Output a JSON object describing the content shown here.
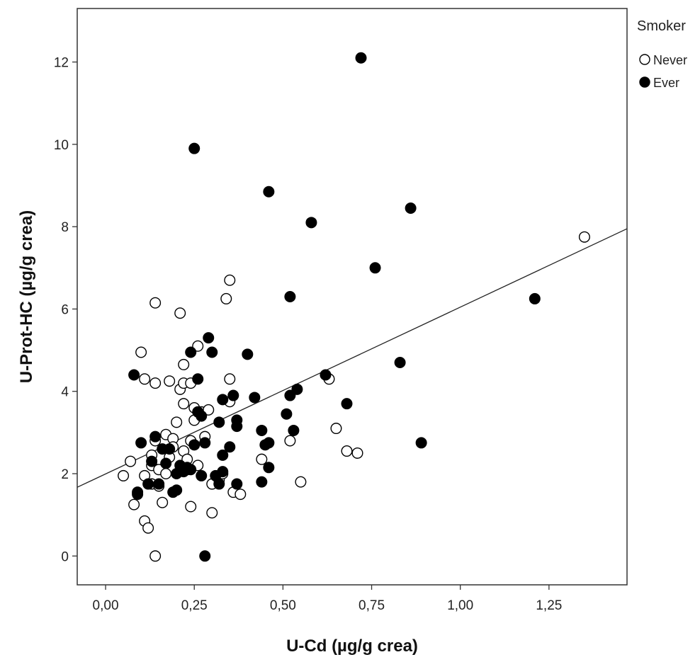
{
  "chart_data": {
    "type": "scatter",
    "title": "",
    "xlabel": "U-Cd (µg/g crea)",
    "ylabel": "U-Prot-HC (µg/g crea)",
    "xlim": [
      -0.08,
      1.47
    ],
    "ylim": [
      -0.7,
      13.3
    ],
    "x_ticks": [
      0,
      0.25,
      0.5,
      0.75,
      1,
      1.25
    ],
    "x_tick_labels": [
      "0,00",
      "0,25",
      "0,50",
      "0,75",
      "1,00",
      "1,25"
    ],
    "y_ticks": [
      0,
      2,
      4,
      6,
      8,
      10,
      12
    ],
    "y_tick_labels": [
      "0",
      "2",
      "4",
      "6",
      "8",
      "10",
      "12"
    ],
    "grid": false,
    "legend": {
      "title": "Smoker",
      "placement": "right-top-outside"
    },
    "fit_line": {
      "x": [
        -0.08,
        1.47
      ],
      "y": [
        1.67,
        7.95
      ]
    },
    "series": [
      {
        "name": "Never",
        "marker": "open-circle",
        "color": "#000000",
        "points": [
          [
            0.05,
            1.95
          ],
          [
            0.07,
            2.3
          ],
          [
            0.08,
            1.25
          ],
          [
            0.1,
            4.95
          ],
          [
            0.11,
            4.3
          ],
          [
            0.11,
            1.95
          ],
          [
            0.11,
            0.85
          ],
          [
            0.12,
            0.68
          ],
          [
            0.13,
            2.45
          ],
          [
            0.13,
            2.2
          ],
          [
            0.13,
            1.75
          ],
          [
            0.14,
            2.8
          ],
          [
            0.14,
            0.0
          ],
          [
            0.14,
            6.15
          ],
          [
            0.14,
            4.2
          ],
          [
            0.15,
            2.1
          ],
          [
            0.15,
            1.7
          ],
          [
            0.16,
            1.3
          ],
          [
            0.17,
            2.95
          ],
          [
            0.17,
            2.0
          ],
          [
            0.18,
            4.25
          ],
          [
            0.18,
            2.4
          ],
          [
            0.19,
            2.85
          ],
          [
            0.19,
            2.65
          ],
          [
            0.2,
            3.25
          ],
          [
            0.21,
            4.05
          ],
          [
            0.21,
            5.9
          ],
          [
            0.22,
            4.65
          ],
          [
            0.22,
            4.2
          ],
          [
            0.22,
            3.7
          ],
          [
            0.22,
            2.55
          ],
          [
            0.22,
            2.2
          ],
          [
            0.23,
            2.35
          ],
          [
            0.23,
            2.1
          ],
          [
            0.24,
            4.2
          ],
          [
            0.24,
            1.2
          ],
          [
            0.24,
            2.8
          ],
          [
            0.25,
            3.6
          ],
          [
            0.25,
            3.3
          ],
          [
            0.26,
            2.2
          ],
          [
            0.26,
            5.1
          ],
          [
            0.27,
            3.5
          ],
          [
            0.28,
            2.9
          ],
          [
            0.29,
            3.55
          ],
          [
            0.3,
            1.75
          ],
          [
            0.3,
            1.05
          ],
          [
            0.32,
            1.85
          ],
          [
            0.33,
            2.0
          ],
          [
            0.34,
            6.25
          ],
          [
            0.35,
            6.7
          ],
          [
            0.35,
            3.75
          ],
          [
            0.35,
            4.3
          ],
          [
            0.36,
            1.55
          ],
          [
            0.38,
            1.5
          ],
          [
            0.44,
            2.35
          ],
          [
            0.52,
            2.8
          ],
          [
            0.55,
            1.8
          ],
          [
            0.63,
            4.3
          ],
          [
            0.65,
            3.1
          ],
          [
            0.68,
            2.55
          ],
          [
            0.71,
            2.5
          ],
          [
            1.35,
            7.75
          ]
        ]
      },
      {
        "name": "Ever",
        "marker": "filled-circle",
        "color": "#000000",
        "points": [
          [
            0.08,
            4.4
          ],
          [
            0.09,
            1.5
          ],
          [
            0.09,
            1.55
          ],
          [
            0.1,
            2.75
          ],
          [
            0.12,
            1.75
          ],
          [
            0.13,
            2.3
          ],
          [
            0.14,
            2.9
          ],
          [
            0.15,
            1.75
          ],
          [
            0.16,
            2.6
          ],
          [
            0.17,
            2.25
          ],
          [
            0.18,
            2.6
          ],
          [
            0.19,
            1.55
          ],
          [
            0.2,
            2.0
          ],
          [
            0.2,
            1.6
          ],
          [
            0.21,
            2.2
          ],
          [
            0.22,
            2.05
          ],
          [
            0.23,
            2.15
          ],
          [
            0.24,
            2.1
          ],
          [
            0.24,
            4.95
          ],
          [
            0.25,
            9.9
          ],
          [
            0.25,
            2.7
          ],
          [
            0.26,
            4.3
          ],
          [
            0.26,
            3.5
          ],
          [
            0.27,
            3.4
          ],
          [
            0.27,
            1.95
          ],
          [
            0.28,
            2.75
          ],
          [
            0.28,
            0.0
          ],
          [
            0.29,
            5.3
          ],
          [
            0.3,
            4.95
          ],
          [
            0.31,
            1.95
          ],
          [
            0.32,
            1.75
          ],
          [
            0.32,
            3.25
          ],
          [
            0.33,
            2.45
          ],
          [
            0.33,
            3.8
          ],
          [
            0.33,
            2.05
          ],
          [
            0.35,
            2.65
          ],
          [
            0.36,
            3.9
          ],
          [
            0.37,
            3.3
          ],
          [
            0.37,
            1.75
          ],
          [
            0.37,
            3.15
          ],
          [
            0.4,
            4.9
          ],
          [
            0.42,
            3.85
          ],
          [
            0.44,
            3.05
          ],
          [
            0.45,
            2.7
          ],
          [
            0.44,
            1.8
          ],
          [
            0.46,
            8.85
          ],
          [
            0.46,
            2.15
          ],
          [
            0.46,
            2.75
          ],
          [
            0.51,
            3.45
          ],
          [
            0.52,
            3.9
          ],
          [
            0.52,
            6.3
          ],
          [
            0.53,
            3.05
          ],
          [
            0.54,
            4.05
          ],
          [
            0.58,
            8.1
          ],
          [
            0.62,
            4.4
          ],
          [
            0.68,
            3.7
          ],
          [
            0.72,
            12.1
          ],
          [
            0.76,
            7.0
          ],
          [
            0.83,
            4.7
          ],
          [
            0.86,
            8.45
          ],
          [
            0.89,
            2.75
          ],
          [
            1.21,
            6.25
          ]
        ]
      }
    ]
  }
}
